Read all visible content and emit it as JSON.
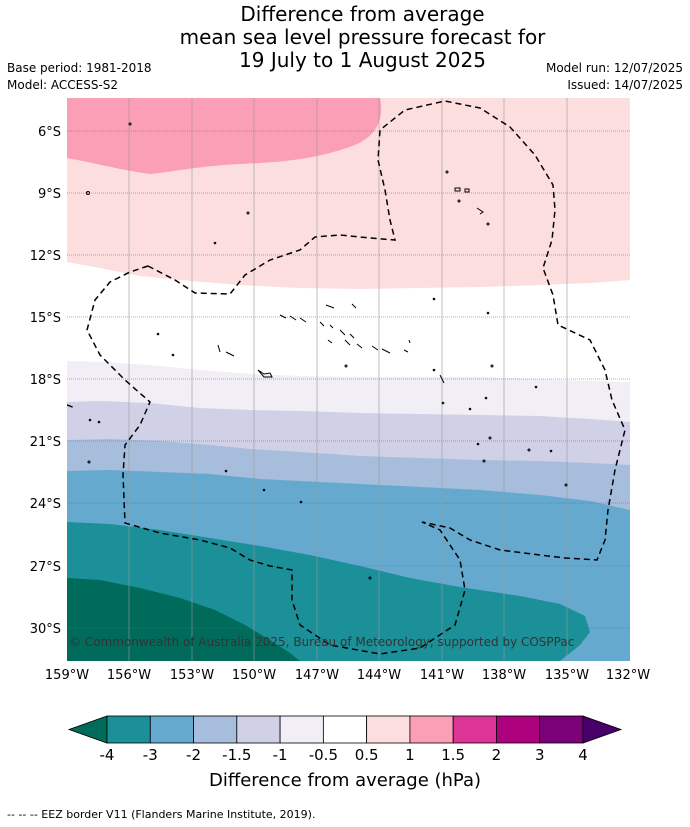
{
  "header": {
    "title_lines": [
      "Difference from average",
      "mean sea level pressure forecast for",
      "19 July to 1 August 2025"
    ],
    "base_period": "Base period: 1981-2018",
    "model": "Model: ACCESS-S2",
    "model_run": "Model run: 12/07/2025",
    "issued": "Issued: 14/07/2025"
  },
  "map": {
    "lat_labels": [
      "6°S",
      "9°S",
      "12°S",
      "15°S",
      "18°S",
      "21°S",
      "24°S",
      "27°S",
      "30°S"
    ],
    "lon_labels": [
      "159°W",
      "156°W",
      "153°W",
      "150°W",
      "147°W",
      "144°W",
      "141°W",
      "138°W",
      "135°W",
      "132°W"
    ],
    "copyright": "© Commonwealth of Australia 2025, Bureau of Meteorology, supported by COSPPac"
  },
  "colorbar": {
    "ticks": [
      "-4",
      "-3",
      "-2",
      "-1.5",
      "-1",
      "-0.5",
      "0.5",
      "1",
      "1.5",
      "2",
      "3",
      "4"
    ],
    "colors": [
      "#006b5a",
      "#1b9098",
      "#66a9cf",
      "#a6bddb",
      "#d0d1e6",
      "#f1eef6",
      "#ffffff",
      "#fddedf",
      "#fa9fb5",
      "#dd3497",
      "#ae017e",
      "#7a0177",
      "#49006a"
    ],
    "label": "Difference from average (hPa)"
  },
  "footer": {
    "legend_text": "--  --  -- EEZ border V11 (Flanders Marine Institute, 2019)."
  }
}
